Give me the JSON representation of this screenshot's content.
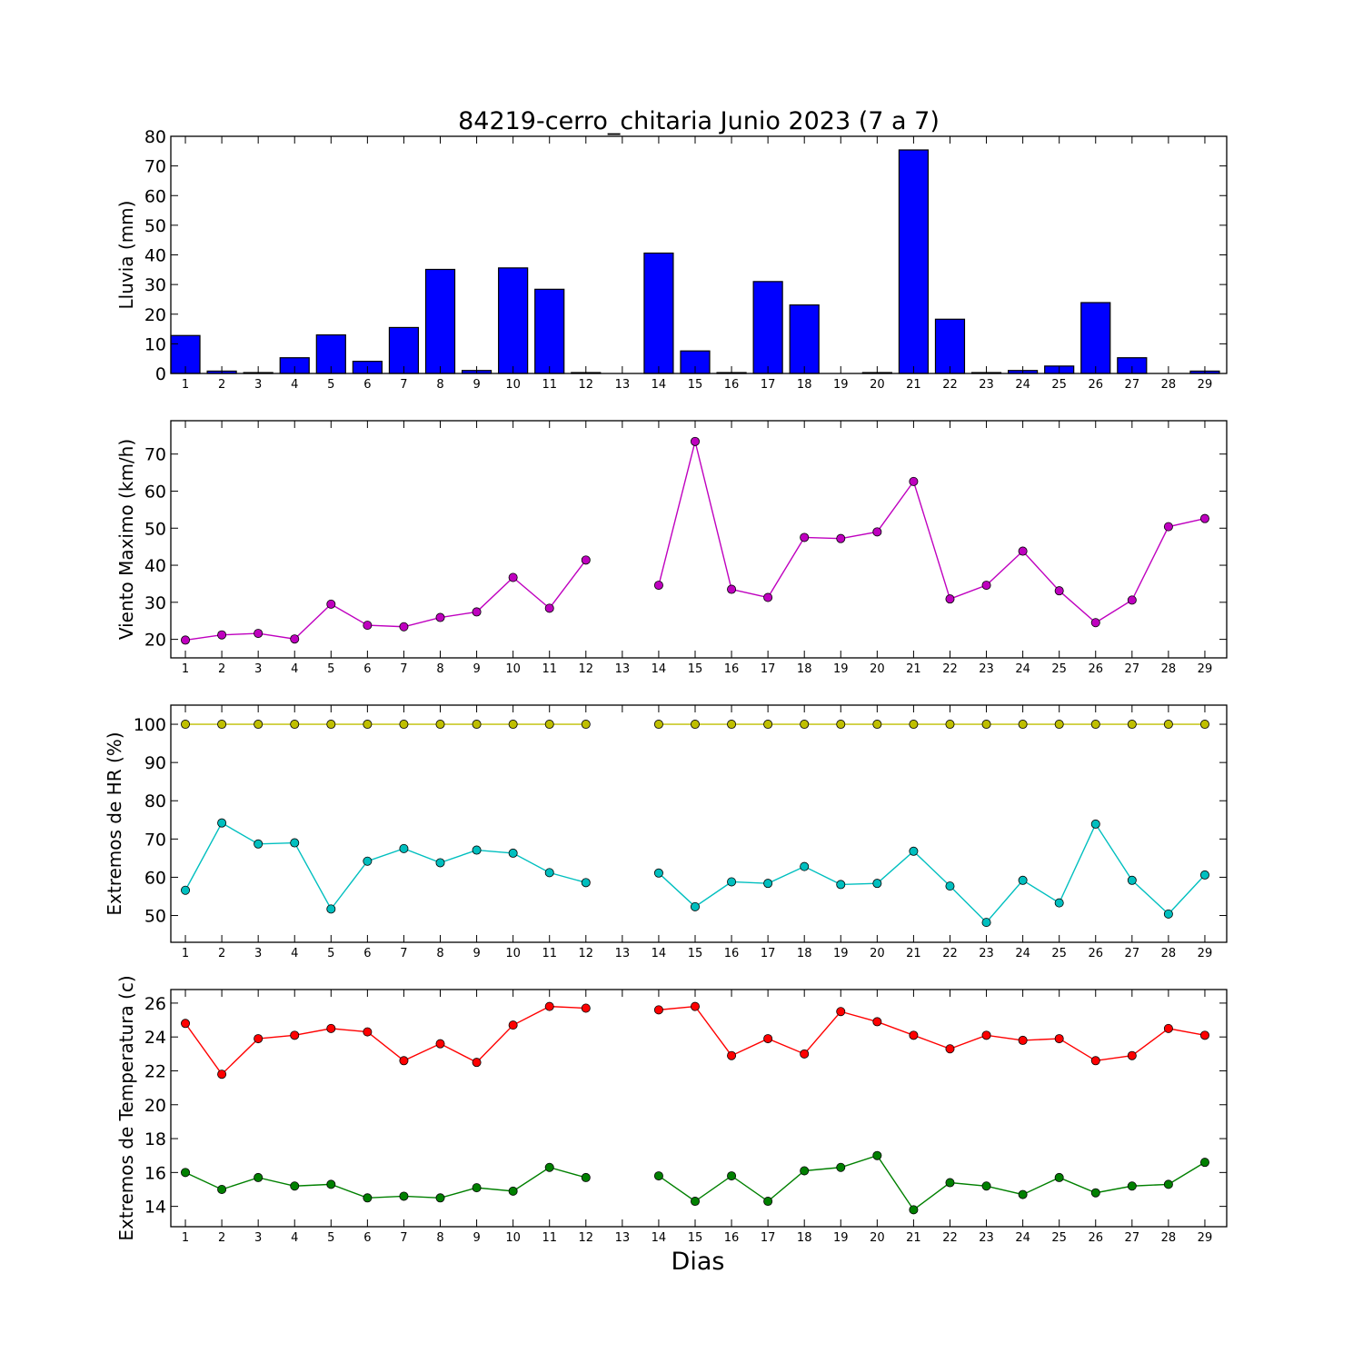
{
  "figure": {
    "title": "84219-cerro_chitaria Junio 2023  (7 a 7)",
    "xlabel": "Dias"
  },
  "chart_data": [
    {
      "type": "bar",
      "ylabel": "Lluvia (mm)",
      "ylim": [
        0,
        80
      ],
      "yticks": [
        0,
        10,
        20,
        30,
        40,
        50,
        60,
        70,
        80
      ],
      "categories": [
        1,
        2,
        3,
        4,
        5,
        6,
        7,
        8,
        9,
        10,
        11,
        12,
        13,
        14,
        15,
        16,
        17,
        18,
        19,
        20,
        21,
        22,
        23,
        24,
        25,
        26,
        27,
        28,
        29
      ],
      "series": [
        {
          "color": "#0000ff",
          "values": [
            12.8,
            0.8,
            0.3,
            5.3,
            13.0,
            4.1,
            15.5,
            35.1,
            1.0,
            35.6,
            28.4,
            0.3,
            null,
            40.6,
            7.6,
            0.3,
            31.0,
            23.1,
            0,
            0.3,
            75.4,
            18.3,
            0.3,
            1.0,
            2.5,
            23.9,
            5.3,
            0,
            0.8
          ]
        }
      ],
      "grid": false,
      "legend": "none"
    },
    {
      "type": "line",
      "ylabel": "Viento Maximo (km/h)",
      "ylim": [
        15,
        79
      ],
      "yticks": [
        20,
        30,
        40,
        50,
        60,
        70
      ],
      "x": [
        1,
        2,
        3,
        4,
        5,
        6,
        7,
        8,
        9,
        10,
        11,
        12,
        13,
        14,
        15,
        16,
        17,
        18,
        19,
        20,
        21,
        22,
        23,
        24,
        25,
        26,
        27,
        28,
        29
      ],
      "series": [
        {
          "color": "#bf00bf",
          "values": [
            19.8,
            21.2,
            21.6,
            20.1,
            29.5,
            23.8,
            23.4,
            25.9,
            27.4,
            36.7,
            28.4,
            41.4,
            null,
            34.6,
            73.4,
            33.5,
            31.3,
            47.5,
            47.2,
            49.0,
            62.6,
            30.9,
            34.6,
            43.8,
            33.1,
            24.5,
            30.6,
            50.4,
            52.6
          ]
        }
      ],
      "grid": false,
      "legend": "none"
    },
    {
      "type": "line",
      "ylabel": "Extremos de HR (%)",
      "ylim": [
        43,
        105
      ],
      "yticks": [
        50,
        60,
        70,
        80,
        90,
        100
      ],
      "x": [
        1,
        2,
        3,
        4,
        5,
        6,
        7,
        8,
        9,
        10,
        11,
        12,
        13,
        14,
        15,
        16,
        17,
        18,
        19,
        20,
        21,
        22,
        23,
        24,
        25,
        26,
        27,
        28,
        29
      ],
      "series": [
        {
          "color": "#bfbf00",
          "values": [
            100,
            100,
            100,
            100,
            100,
            100,
            100,
            100,
            100,
            100,
            100,
            100,
            null,
            100,
            100,
            100,
            100,
            100,
            100,
            100,
            100,
            100,
            100,
            100,
            100,
            100,
            100,
            100,
            100
          ]
        },
        {
          "color": "#00bfbf",
          "values": [
            56.6,
            74.2,
            68.7,
            69.0,
            51.7,
            64.2,
            67.5,
            63.8,
            67.1,
            66.3,
            61.2,
            58.6,
            null,
            61.1,
            52.3,
            58.8,
            58.4,
            62.8,
            58.1,
            58.4,
            66.8,
            57.7,
            48.2,
            59.2,
            53.3,
            73.9,
            59.2,
            50.4,
            60.6
          ]
        }
      ],
      "grid": false,
      "legend": "none"
    },
    {
      "type": "line",
      "ylabel": "Extremos de Temperatura (c)",
      "ylim": [
        12.8,
        26.8
      ],
      "yticks": [
        14,
        16,
        18,
        20,
        22,
        24,
        26
      ],
      "x": [
        1,
        2,
        3,
        4,
        5,
        6,
        7,
        8,
        9,
        10,
        11,
        12,
        13,
        14,
        15,
        16,
        17,
        18,
        19,
        20,
        21,
        22,
        23,
        24,
        25,
        26,
        27,
        28,
        29
      ],
      "series": [
        {
          "color": "#ff0000",
          "values": [
            24.8,
            21.8,
            23.9,
            24.1,
            24.5,
            24.3,
            22.6,
            23.6,
            22.5,
            24.7,
            25.8,
            25.7,
            null,
            25.6,
            25.8,
            22.9,
            23.9,
            23.0,
            25.5,
            24.9,
            24.1,
            23.3,
            24.1,
            23.8,
            23.9,
            22.6,
            22.9,
            24.5,
            24.1
          ]
        },
        {
          "color": "#008000",
          "values": [
            16.0,
            15.0,
            15.7,
            15.2,
            15.3,
            14.5,
            14.6,
            14.5,
            15.1,
            14.9,
            16.3,
            15.7,
            null,
            15.8,
            14.3,
            15.8,
            14.3,
            16.1,
            16.3,
            17.0,
            13.8,
            15.4,
            15.2,
            14.7,
            15.7,
            14.8,
            15.2,
            15.3,
            16.6
          ]
        }
      ],
      "grid": false,
      "legend": "none"
    }
  ]
}
